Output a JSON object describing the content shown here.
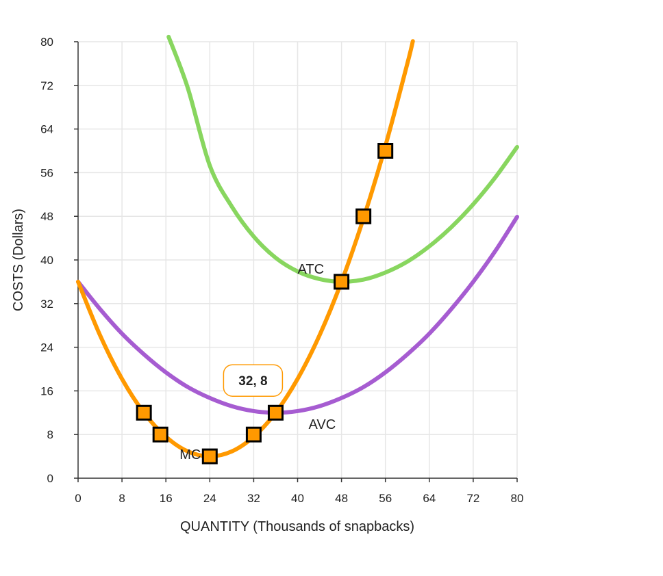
{
  "chart_data": {
    "type": "line",
    "xlabel": "QUANTITY (Thousands of snapbacks)",
    "ylabel": "COSTS (Dollars)",
    "xlim": [
      0,
      80
    ],
    "ylim": [
      0,
      80
    ],
    "xticks": [
      0,
      8,
      16,
      24,
      32,
      40,
      48,
      56,
      64,
      72,
      80
    ],
    "yticks": [
      0,
      8,
      16,
      24,
      32,
      40,
      48,
      56,
      64,
      72,
      80
    ],
    "grid": true,
    "series": [
      {
        "name": "ATC",
        "color": "#88d65f",
        "label_at": [
          40,
          37.5
        ],
        "x": [
          16.5,
          20,
          24,
          28,
          32,
          36,
          40,
          44,
          48,
          52,
          56,
          60,
          64,
          68,
          72,
          76,
          80
        ],
        "y": [
          80.9,
          71.5,
          57.3,
          49.8,
          44.3,
          40.4,
          37.9,
          36.5,
          36.0,
          36.4,
          37.7,
          39.7,
          42.5,
          46.0,
          50.2,
          55.1,
          60.7
        ]
      },
      {
        "name": "AVC",
        "color": "#a65cd1",
        "label_at": [
          42,
          9
        ],
        "x": [
          0,
          4,
          8,
          12,
          16,
          20,
          24,
          28,
          32,
          36,
          40,
          44,
          48,
          52,
          56,
          60,
          64,
          68,
          72,
          76,
          80
        ],
        "y": [
          36,
          31,
          26.5,
          22.7,
          19.4,
          16.7,
          14.7,
          13.2,
          12.3,
          12,
          12.3,
          13.2,
          14.7,
          16.7,
          19.4,
          22.7,
          26.5,
          31,
          36,
          41.6,
          47.9
        ]
      },
      {
        "name": "MC",
        "color": "#ff9900",
        "label_at": [
          18.5,
          3.5
        ],
        "x": [
          0,
          4,
          8,
          12,
          16,
          20,
          24,
          28,
          32,
          36,
          40,
          44,
          48,
          52,
          56,
          60,
          61
        ],
        "y": [
          36,
          26.2,
          18.2,
          12,
          7.6,
          4.9,
          4,
          4.9,
          7.6,
          12,
          18.2,
          26.2,
          36,
          47.6,
          60.9,
          76,
          80.1
        ]
      }
    ],
    "points": {
      "color": "#ff9900",
      "x": [
        12,
        15,
        24,
        32,
        36,
        48,
        52,
        56
      ],
      "y": [
        12,
        8,
        4,
        8,
        12,
        36,
        48,
        60
      ]
    },
    "tooltip": {
      "text": "32, 8",
      "at": [
        32,
        8
      ]
    }
  }
}
